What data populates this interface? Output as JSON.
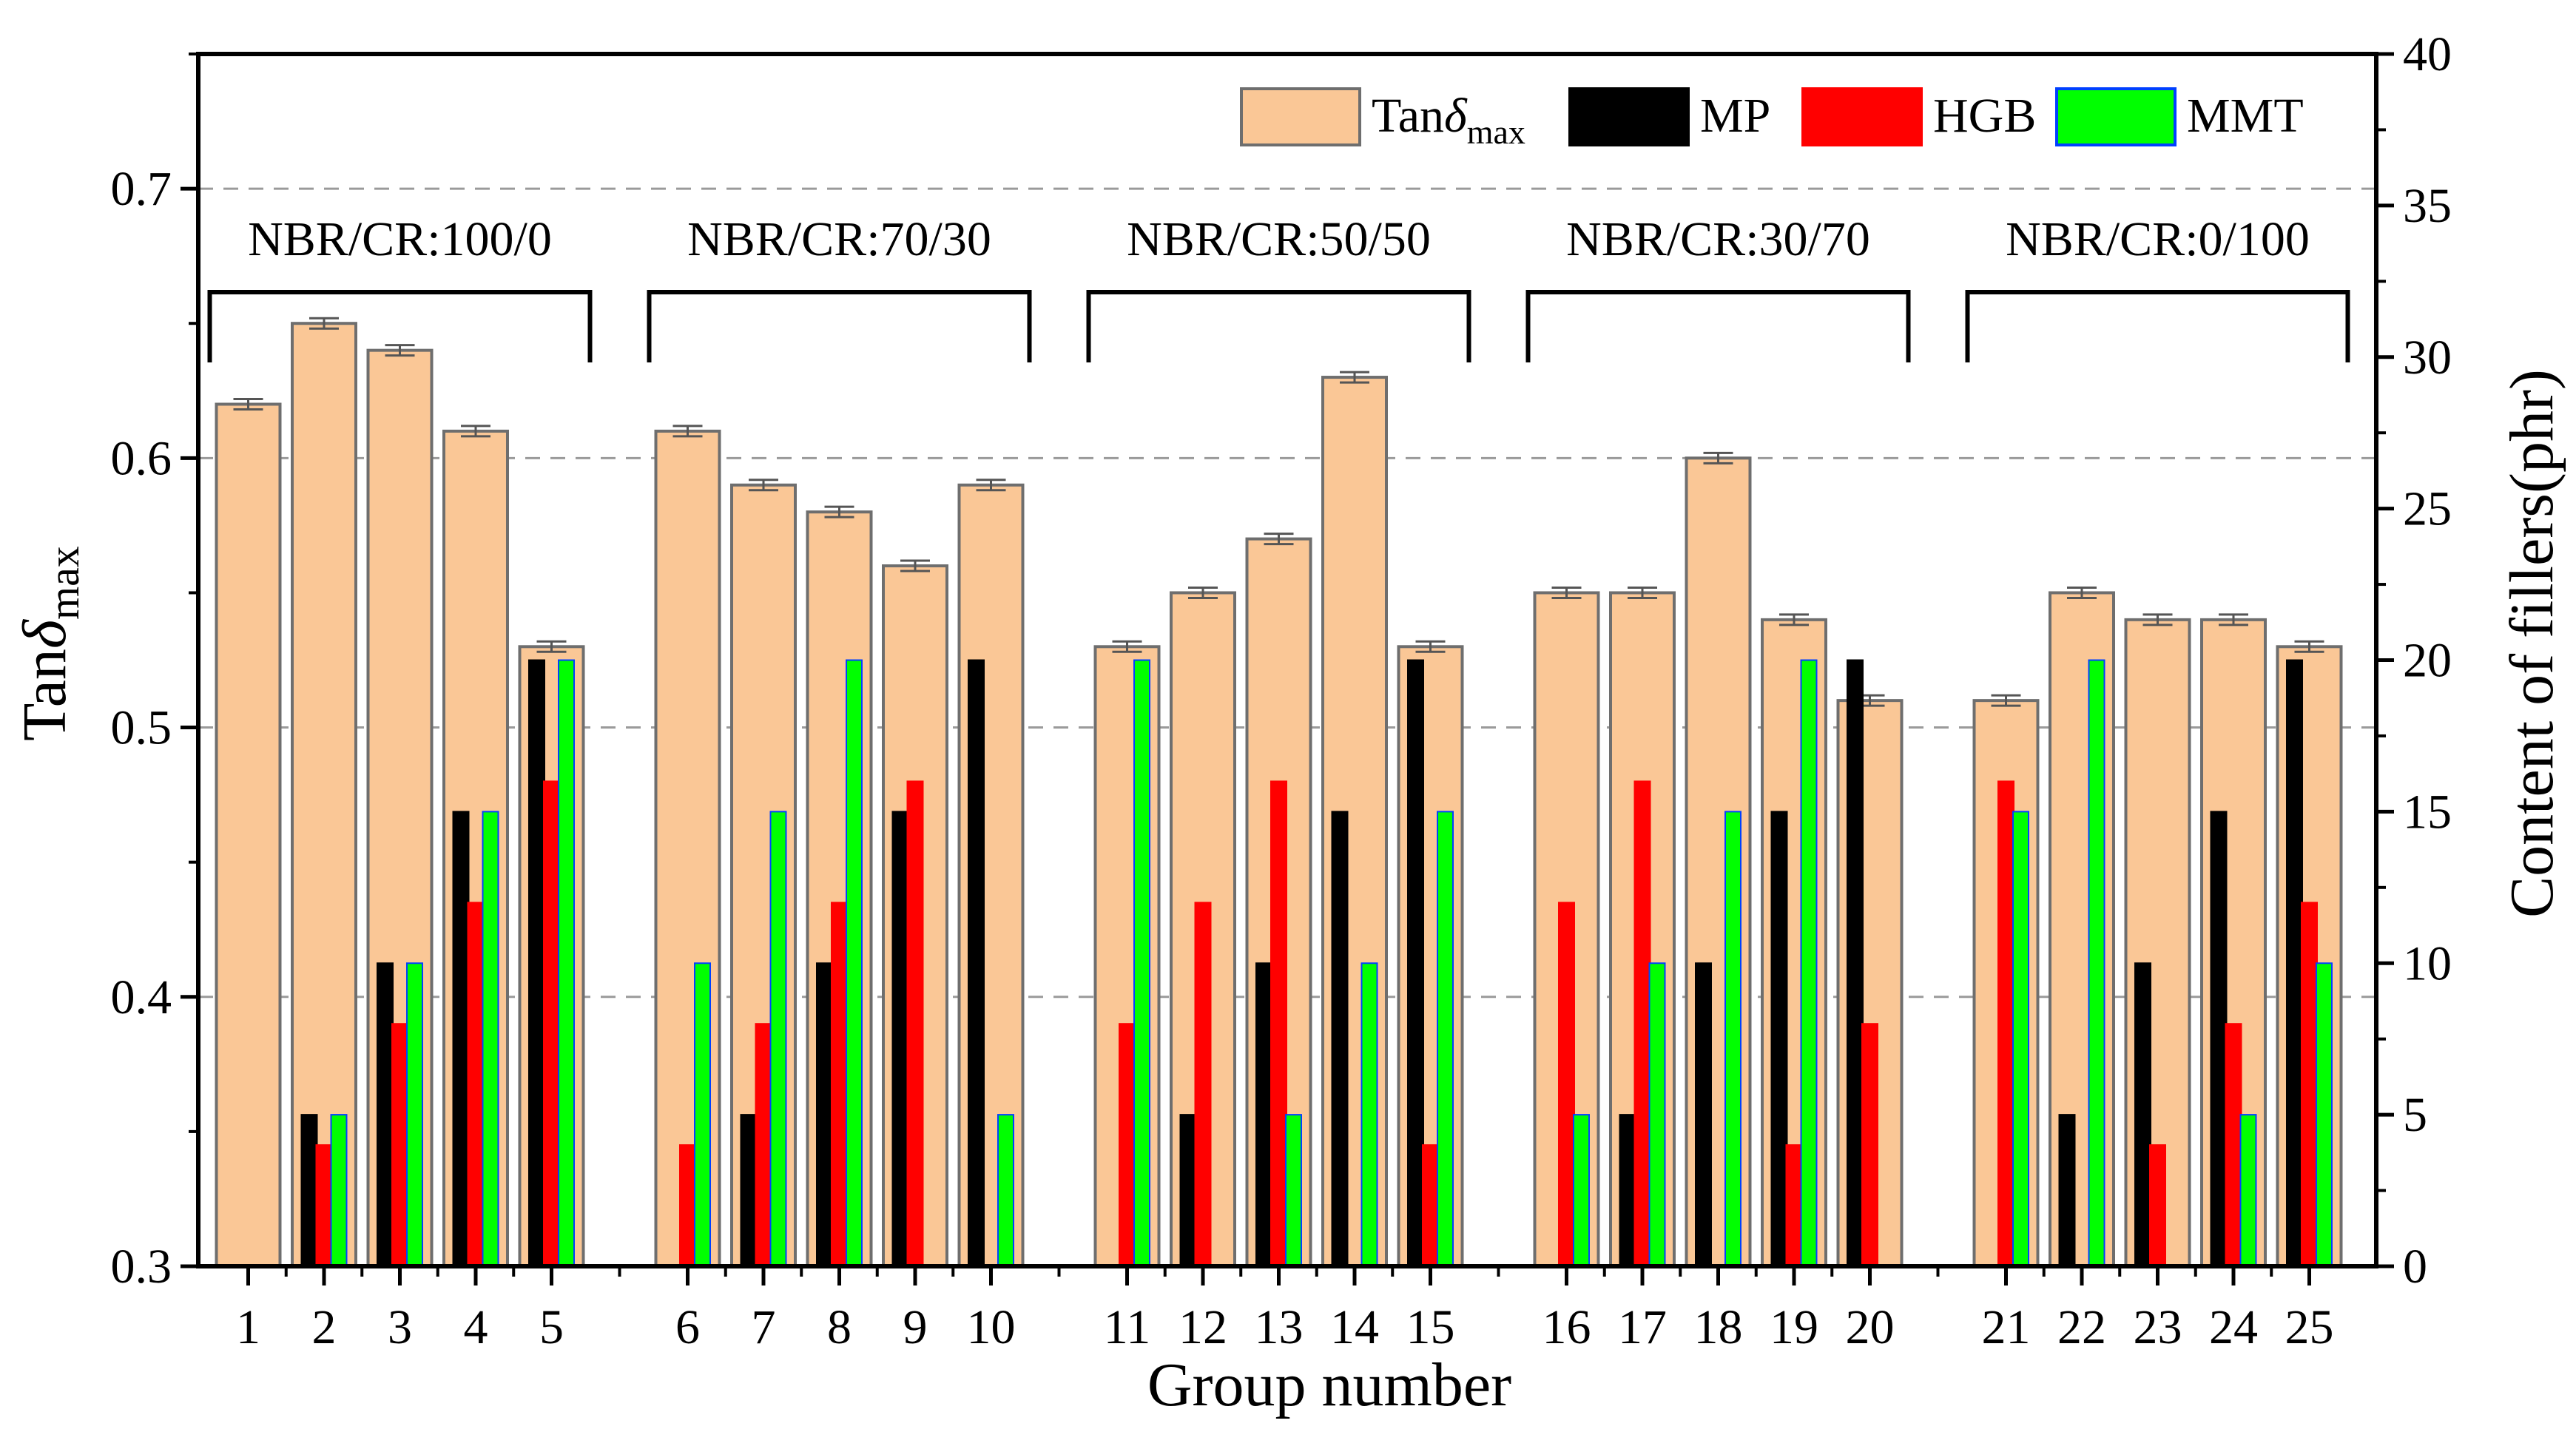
{
  "chart_data": {
    "type": "bar",
    "xlabel": "Group number",
    "ylabel_left": "Tan",
    "ylabel_left_delta": "δ",
    "ylabel_left_sub": "max",
    "ylabel_right": "Content of fillers(phr)",
    "ylim_left": [
      0.3,
      0.75
    ],
    "yticks_left": [
      "0.3",
      "0.4",
      "0.5",
      "0.6",
      "0.7"
    ],
    "ylim_right": [
      0,
      40
    ],
    "yticks_right": [
      "0",
      "5",
      "10",
      "15",
      "20",
      "25",
      "30",
      "35",
      "40"
    ],
    "grid": "horizontal dashed at 0.4, 0.5, 0.6, 0.7",
    "legend_position": "top-right",
    "categories": [
      "1",
      "2",
      "3",
      "4",
      "5",
      "6",
      "7",
      "8",
      "9",
      "10",
      "11",
      "12",
      "13",
      "14",
      "15",
      "16",
      "17",
      "18",
      "19",
      "20",
      "21",
      "22",
      "23",
      "24",
      "25"
    ],
    "groups": [
      {
        "label": "NBR/CR:100/0",
        "members": [
          1,
          5
        ]
      },
      {
        "label": "NBR/CR:70/30",
        "members": [
          6,
          10
        ]
      },
      {
        "label": "NBR/CR:50/50",
        "members": [
          11,
          15
        ]
      },
      {
        "label": "NBR/CR:30/70",
        "members": [
          16,
          20
        ]
      },
      {
        "label": "NBR/CR:0/100",
        "members": [
          21,
          25
        ]
      }
    ],
    "series": [
      {
        "name": "Tan",
        "name_delta": "δ",
        "name_sub": "max",
        "axis": "left",
        "color": "#FAC796",
        "edge": "#6E6E6E",
        "values": [
          0.62,
          0.65,
          0.64,
          0.61,
          0.53,
          0.61,
          0.59,
          0.58,
          0.56,
          0.59,
          0.53,
          0.55,
          0.57,
          0.63,
          0.53,
          0.55,
          0.55,
          0.6,
          0.54,
          0.51,
          0.51,
          0.55,
          0.54,
          0.54,
          0.53
        ]
      },
      {
        "name": "MP",
        "axis": "right",
        "color": "#000000",
        "edge": "#000000",
        "values": [
          0,
          5,
          10,
          15,
          20,
          0,
          5,
          10,
          15,
          20,
          0,
          5,
          10,
          15,
          20,
          0,
          5,
          10,
          15,
          20,
          0,
          5,
          10,
          15,
          20
        ]
      },
      {
        "name": "HGB",
        "axis": "right",
        "color": "#FF0000",
        "edge": "#FF0000",
        "values": [
          0,
          4,
          8,
          12,
          16,
          4,
          8,
          12,
          16,
          0,
          8,
          12,
          16,
          0,
          4,
          12,
          16,
          0,
          4,
          8,
          16,
          0,
          4,
          8,
          12
        ]
      },
      {
        "name": "MMT",
        "axis": "right",
        "color": "#00FF00",
        "edge": "#0040FF",
        "values": [
          0,
          5,
          10,
          15,
          20,
          10,
          15,
          20,
          0,
          5,
          20,
          0,
          5,
          10,
          15,
          5,
          10,
          15,
          20,
          0,
          15,
          20,
          0,
          5,
          10
        ]
      }
    ]
  }
}
